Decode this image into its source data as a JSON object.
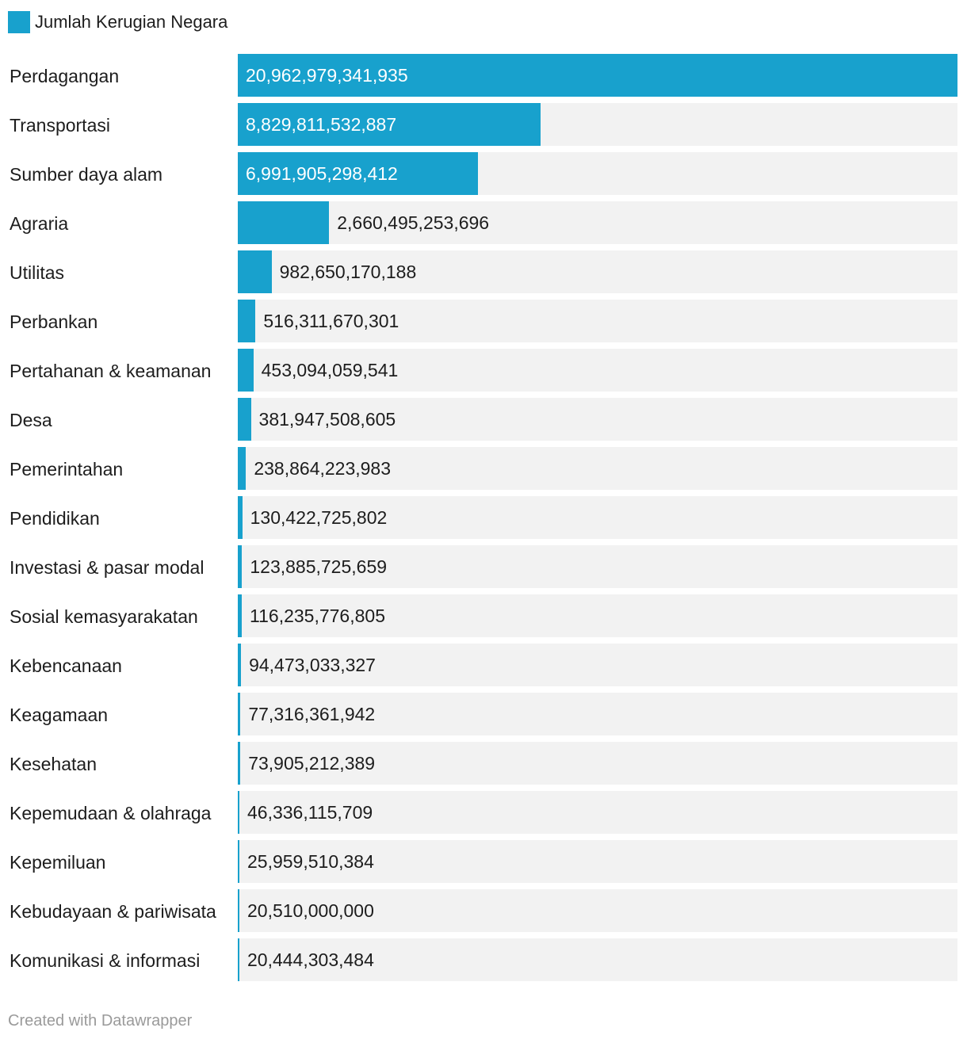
{
  "legend": {
    "label": "Jumlah Kerugian Negara",
    "color": "#18a1cd"
  },
  "footer": {
    "credit": "Created with Datawrapper"
  },
  "chart_data": {
    "type": "bar",
    "orientation": "horizontal",
    "title": "",
    "xlabel": "",
    "ylabel": "",
    "xlim": [
      0,
      20962979341935
    ],
    "grid": false,
    "legend_position": "top-left",
    "series": [
      {
        "name": "Jumlah Kerugian Negara",
        "color": "#18a1cd"
      }
    ],
    "categories": [
      "Perdagangan",
      "Transportasi",
      "Sumber daya alam",
      "Agraria",
      "Utilitas",
      "Perbankan",
      "Pertahanan & keamanan",
      "Desa",
      "Pemerintahan",
      "Pendidikan",
      "Investasi & pasar modal",
      "Sosial kemasyarakatan",
      "Kebencanaan",
      "Keagamaan",
      "Kesehatan",
      "Kepemudaan & olahraga",
      "Kepemiluan",
      "Kebudayaan & pariwisata",
      "Komunikasi & informasi"
    ],
    "values": [
      20962979341935,
      8829811532887,
      6991905298412,
      2660495253696,
      982650170188,
      516311670301,
      453094059541,
      381947508605,
      238864223983,
      130422725802,
      123885725659,
      116235776805,
      94473033327,
      77316361942,
      73905212389,
      46336115709,
      25959510384,
      20510000000,
      20444303484
    ],
    "value_labels": [
      "20,962,979,341,935",
      "8,829,811,532,887",
      "6,991,905,298,412",
      "2,660,495,253,696",
      "982,650,170,188",
      "516,311,670,301",
      "453,094,059,541",
      "381,947,508,605",
      "238,864,223,983",
      "130,422,725,802",
      "123,885,725,659",
      "116,235,776,805",
      "94,473,033,327",
      "77,316,361,942",
      "73,905,212,389",
      "46,336,115,709",
      "25,959,510,384",
      "20,510,000,000",
      "20,444,303,484"
    ]
  }
}
